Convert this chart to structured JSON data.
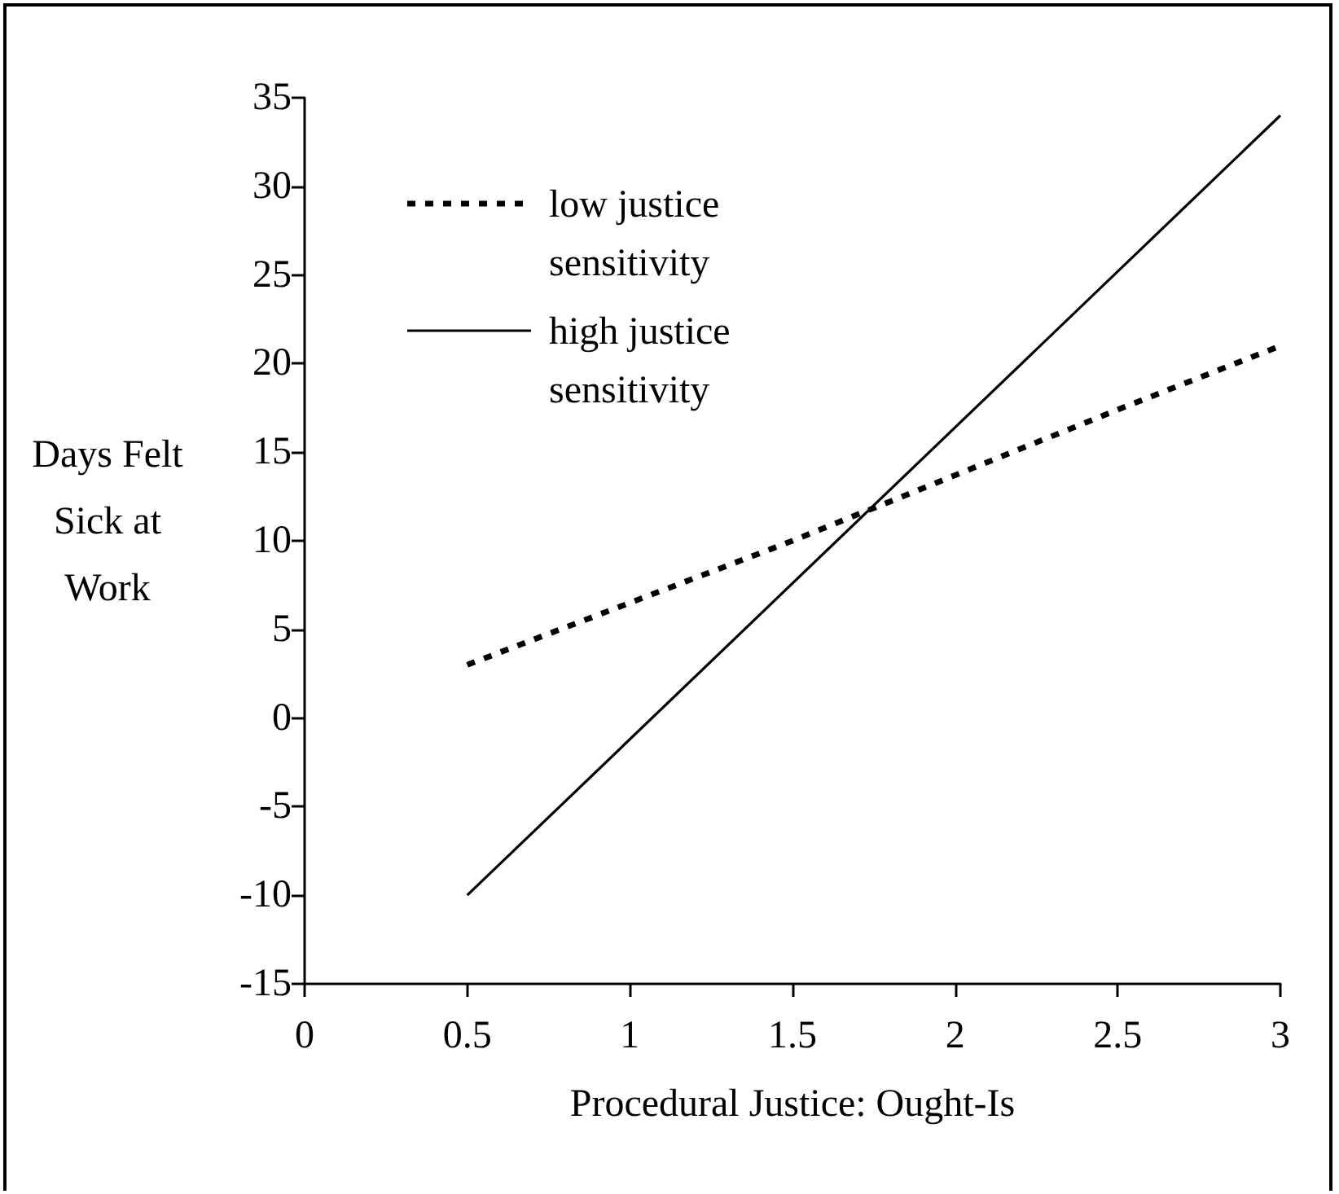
{
  "chart_data": {
    "type": "line",
    "xlabel": "Procedural Justice: Ought-Is",
    "ylabel": "Days Felt Sick at Work",
    "xlim": [
      0,
      3
    ],
    "xticks": [
      0,
      0.5,
      1,
      1.5,
      2,
      2.5,
      3
    ],
    "ylim": [
      -15,
      35
    ],
    "yticks": [
      -15,
      -10,
      -5,
      0,
      5,
      10,
      15,
      20,
      25,
      30,
      35
    ],
    "grid": false,
    "legend": "top left",
    "marker": "none",
    "series": [
      {
        "name": "low justice sensitivity",
        "color": "#000000",
        "line_style": "dotted",
        "x": [
          0.5,
          1,
          1.5,
          2,
          2.5,
          3
        ],
        "values": [
          3,
          6.5,
          10,
          13.7,
          17.4,
          21
        ]
      },
      {
        "name": "high justice sensitivity",
        "color": "#000000",
        "line_style": "solid",
        "x": [
          0.5,
          3
        ],
        "values": [
          -10,
          34
        ]
      }
    ]
  }
}
